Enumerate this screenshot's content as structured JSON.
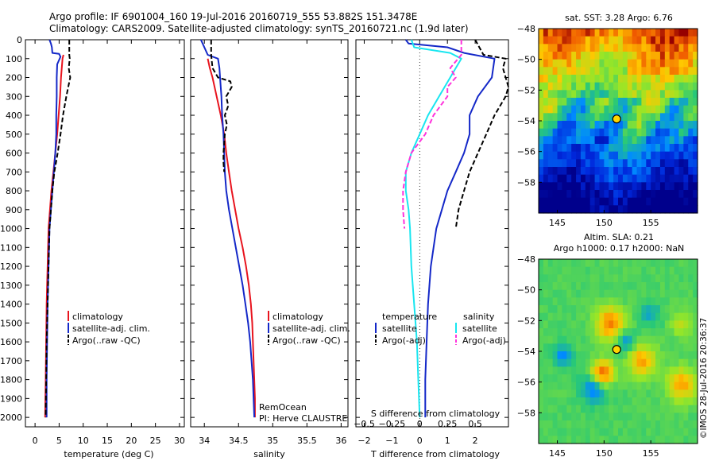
{
  "header": {
    "line1": "Argo profile: IF 6901004_160 19-Jul-2016 20160719_555 53.882S 151.3478E",
    "line2": "Climatology: CARS2009. Satellite-adjusted climatology: synTS_20160721.nc (1.9d later)"
  },
  "colors": {
    "climatology": "#e8141e",
    "satellite": "#1428c8",
    "argo": "#000000",
    "satellite_s": "#19e6f0",
    "argo_s": "#ff32dc"
  },
  "chart_data": [
    {
      "type": "line",
      "id": "temperature",
      "xlabel": "temperature (deg C)",
      "ylabel": "",
      "xlim": [
        -2,
        31
      ],
      "ylim": [
        2050,
        0
      ],
      "xticks": [
        0,
        5,
        10,
        15,
        20,
        25,
        30
      ],
      "yticks": [
        0,
        100,
        200,
        300,
        400,
        500,
        600,
        700,
        800,
        900,
        1000,
        1100,
        1200,
        1300,
        1400,
        1500,
        1600,
        1700,
        1800,
        1900,
        2000
      ],
      "legend": [
        "climatology",
        "satellite-adj. clim.",
        "Argo(..raw -QC)"
      ],
      "series": [
        {
          "name": "climatology",
          "color": "#e8141e",
          "dash": false,
          "points": [
            [
              5.9,
              80
            ],
            [
              5.7,
              100
            ],
            [
              5.4,
              200
            ],
            [
              5.2,
              300
            ],
            [
              4.9,
              400
            ],
            [
              4.6,
              500
            ],
            [
              4.2,
              600
            ],
            [
              3.8,
              700
            ],
            [
              3.4,
              800
            ],
            [
              3.1,
              900
            ],
            [
              2.8,
              1000
            ],
            [
              2.6,
              1200
            ],
            [
              2.4,
              1400
            ],
            [
              2.3,
              1600
            ],
            [
              2.2,
              1800
            ],
            [
              2.1,
              2000
            ]
          ]
        },
        {
          "name": "satellite-adj. clim.",
          "color": "#1428c8",
          "dash": false,
          "points": [
            [
              3.0,
              0
            ],
            [
              3.3,
              20
            ],
            [
              3.5,
              40
            ],
            [
              3.6,
              70
            ],
            [
              5.0,
              75
            ],
            [
              5.3,
              90
            ],
            [
              4.6,
              130
            ],
            [
              4.5,
              200
            ],
            [
              4.5,
              300
            ],
            [
              4.4,
              400
            ],
            [
              4.4,
              500
            ],
            [
              4.2,
              600
            ],
            [
              3.9,
              700
            ],
            [
              3.6,
              800
            ],
            [
              3.3,
              900
            ],
            [
              3.0,
              1000
            ],
            [
              2.8,
              1200
            ],
            [
              2.6,
              1400
            ],
            [
              2.5,
              1600
            ],
            [
              2.4,
              1800
            ],
            [
              2.4,
              2000
            ]
          ]
        },
        {
          "name": "Argo(..raw -QC)",
          "color": "#000000",
          "dash": true,
          "points": [
            [
              7.1,
              0
            ],
            [
              7.1,
              80
            ],
            [
              7.2,
              100
            ],
            [
              7.0,
              150
            ],
            [
              7.3,
              200
            ],
            [
              6.9,
              250
            ],
            [
              6.5,
              300
            ],
            [
              5.8,
              400
            ],
            [
              5.3,
              500
            ],
            [
              4.7,
              600
            ],
            [
              4.0,
              700
            ],
            [
              3.6,
              800
            ],
            [
              3.3,
              900
            ],
            [
              3.0,
              1000
            ],
            [
              2.8,
              1200
            ],
            [
              2.6,
              1400
            ],
            [
              2.4,
              1600
            ],
            [
              2.3,
              1800
            ],
            [
              2.2,
              2000
            ]
          ]
        }
      ]
    },
    {
      "type": "line",
      "id": "salinity",
      "xlabel": "salinity",
      "ylabel": "",
      "xlim": [
        33.8,
        36.1
      ],
      "ylim": [
        2050,
        0
      ],
      "xticks": [
        34,
        34.5,
        35,
        35.5,
        36
      ],
      "legend": [
        "climatology",
        "satellite-adj. clim.",
        "Argo(..raw -QC)"
      ],
      "annotations": [
        "RemOcean",
        "PI: Herve CLAUSTRE"
      ],
      "series": [
        {
          "name": "climatology",
          "color": "#e8141e",
          "dash": false,
          "points": [
            [
              34.05,
              100
            ],
            [
              34.08,
              150
            ],
            [
              34.12,
              200
            ],
            [
              34.18,
              300
            ],
            [
              34.24,
              400
            ],
            [
              34.29,
              500
            ],
            [
              34.32,
              600
            ],
            [
              34.36,
              700
            ],
            [
              34.4,
              800
            ],
            [
              34.45,
              900
            ],
            [
              34.5,
              1000
            ],
            [
              34.56,
              1100
            ],
            [
              34.61,
              1200
            ],
            [
              34.65,
              1300
            ],
            [
              34.68,
              1400
            ],
            [
              34.7,
              1500
            ],
            [
              34.72,
              1700
            ],
            [
              34.74,
              1900
            ],
            [
              34.74,
              2000
            ]
          ]
        },
        {
          "name": "satellite-adj. clim.",
          "color": "#1428c8",
          "dash": false,
          "points": [
            [
              33.95,
              0
            ],
            [
              34.05,
              80
            ],
            [
              34.2,
              100
            ],
            [
              34.22,
              150
            ],
            [
              34.23,
              200
            ],
            [
              34.25,
              300
            ],
            [
              34.26,
              400
            ],
            [
              34.28,
              500
            ],
            [
              34.29,
              600
            ],
            [
              34.3,
              700
            ],
            [
              34.32,
              800
            ],
            [
              34.36,
              900
            ],
            [
              34.41,
              1000
            ],
            [
              34.46,
              1100
            ],
            [
              34.51,
              1200
            ],
            [
              34.56,
              1300
            ],
            [
              34.6,
              1400
            ],
            [
              34.64,
              1500
            ],
            [
              34.67,
              1600
            ],
            [
              34.69,
              1700
            ],
            [
              34.71,
              1800
            ],
            [
              34.72,
              1900
            ],
            [
              34.73,
              2000
            ]
          ]
        },
        {
          "name": "Argo(..raw -QC)",
          "color": "#000000",
          "dash": true,
          "points": [
            [
              34.1,
              0
            ],
            [
              34.1,
              80
            ],
            [
              34.12,
              150
            ],
            [
              34.2,
              200
            ],
            [
              34.38,
              220
            ],
            [
              34.4,
              250
            ],
            [
              34.32,
              300
            ],
            [
              34.35,
              350
            ],
            [
              34.3,
              400
            ],
            [
              34.33,
              450
            ],
            [
              34.3,
              500
            ],
            [
              34.29,
              550
            ],
            [
              34.28,
              600
            ],
            [
              34.28,
              650
            ],
            [
              34.29,
              700
            ]
          ]
        }
      ]
    },
    {
      "type": "line",
      "id": "differences",
      "xlabel": "T difference from climatology",
      "xlabel_top": "S difference from climatology",
      "xlim": [
        -2.3,
        3.2
      ],
      "ylim": [
        2050,
        0
      ],
      "xticks": [
        -2,
        -1,
        0,
        1,
        2
      ],
      "xticks_s": [
        -0.5,
        -0.25,
        0,
        0.25,
        0.5
      ],
      "legend_groups": [
        "temperature",
        "salinity"
      ],
      "legend": [
        "satellite",
        "Argo(-adj)",
        "satellite",
        "Argo(-adj)"
      ],
      "series": [
        {
          "name": "satellite",
          "group": "temperature",
          "color": "#1428c8",
          "dash": false,
          "points": [
            [
              -0.5,
              0
            ],
            [
              -0.4,
              20
            ],
            [
              1.0,
              40
            ],
            [
              1.6,
              70
            ],
            [
              2.7,
              100
            ],
            [
              2.6,
              200
            ],
            [
              2.1,
              300
            ],
            [
              1.8,
              400
            ],
            [
              1.8,
              500
            ],
            [
              1.6,
              600
            ],
            [
              1.3,
              700
            ],
            [
              1.0,
              800
            ],
            [
              0.8,
              900
            ],
            [
              0.6,
              1000
            ],
            [
              0.4,
              1200
            ],
            [
              0.3,
              1400
            ],
            [
              0.25,
              1600
            ],
            [
              0.2,
              1800
            ],
            [
              0.2,
              2000
            ]
          ]
        },
        {
          "name": "Argo(-adj)",
          "group": "temperature",
          "color": "#000000",
          "dash": true,
          "points": [
            [
              2.0,
              0
            ],
            [
              2.3,
              80
            ],
            [
              3.1,
              100
            ],
            [
              3.0,
              150
            ],
            [
              3.2,
              250
            ],
            [
              3.1,
              300
            ],
            [
              2.7,
              400
            ],
            [
              2.4,
              500
            ],
            [
              2.1,
              600
            ],
            [
              1.8,
              700
            ],
            [
              1.6,
              800
            ],
            [
              1.4,
              900
            ],
            [
              1.3,
              1000
            ]
          ]
        },
        {
          "name": "satellite",
          "group": "salinity",
          "color": "#19e6f0",
          "dash": false,
          "points": [
            [
              -0.3,
              0
            ],
            [
              -0.2,
              40
            ],
            [
              1.1,
              70
            ],
            [
              1.5,
              100
            ],
            [
              1.1,
              200
            ],
            [
              0.7,
              300
            ],
            [
              0.3,
              400
            ],
            [
              0.0,
              500
            ],
            [
              -0.3,
              600
            ],
            [
              -0.5,
              700
            ],
            [
              -0.5,
              800
            ],
            [
              -0.4,
              900
            ],
            [
              -0.35,
              1000
            ],
            [
              -0.3,
              1200
            ],
            [
              -0.2,
              1400
            ],
            [
              -0.1,
              1600
            ],
            [
              -0.05,
              1800
            ],
            [
              0.0,
              2000
            ]
          ]
        },
        {
          "name": "Argo(-adj)",
          "group": "salinity",
          "color": "#ff32dc",
          "dash": true,
          "points": [
            [
              1.5,
              0
            ],
            [
              1.5,
              80
            ],
            [
              1.1,
              150
            ],
            [
              1.3,
              200
            ],
            [
              1.0,
              250
            ],
            [
              1.0,
              300
            ],
            [
              0.5,
              400
            ],
            [
              0.2,
              500
            ],
            [
              -0.3,
              600
            ],
            [
              -0.5,
              700
            ],
            [
              -0.6,
              800
            ],
            [
              -0.6,
              900
            ],
            [
              -0.55,
              1000
            ]
          ]
        }
      ]
    }
  ],
  "maps": {
    "sst": {
      "title": "sat. SST: 3.28 Argo: 6.76",
      "yticks": [
        -48,
        -50,
        -52,
        -54,
        -56,
        -58
      ],
      "xticks": [
        145,
        150,
        155
      ],
      "lon_range": [
        143,
        160
      ],
      "lat_range": [
        -60,
        -48
      ],
      "argo_lon": 151.35,
      "argo_lat": -53.88
    },
    "sla": {
      "title1": "Altim. SLA: 0.21",
      "title2": "Argo h1000: 0.17 h2000: NaN",
      "yticks": [
        -48,
        -50,
        -52,
        -54,
        -56,
        -58
      ],
      "xticks": [
        145,
        150,
        155
      ],
      "lon_range": [
        143,
        160
      ],
      "lat_range": [
        -60,
        -48
      ],
      "argo_lon": 151.35,
      "argo_lat": -53.88
    }
  },
  "credit": "©IMOS 28-Jul-2016 20:36:37"
}
